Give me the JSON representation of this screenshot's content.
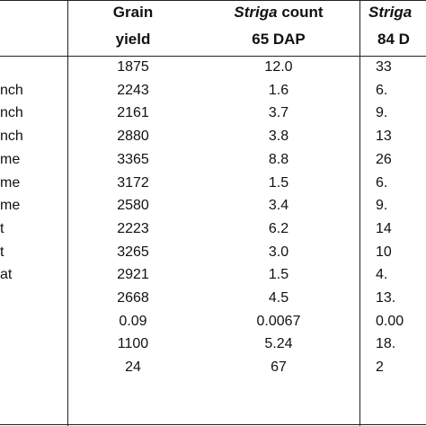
{
  "table": {
    "header": {
      "grain": [
        "Grain",
        "yield"
      ],
      "striga65": {
        "line1": [
          "Striga",
          " count"
        ],
        "line2": "65 DAP"
      },
      "striga84": [
        "Striga",
        "84 D"
      ]
    },
    "rows": [
      [
        null,
        "1875",
        "12.0",
        "33"
      ],
      [
        "nch",
        "2243",
        "1.6",
        "6."
      ],
      [
        "nch",
        "2161",
        "3.7",
        "9."
      ],
      [
        "nch",
        "2880",
        "3.8",
        "13"
      ],
      [
        "me",
        "3365",
        "8.8",
        "26"
      ],
      [
        "me",
        "3172",
        "1.5",
        "6."
      ],
      [
        "me",
        "2580",
        "3.4",
        "9."
      ],
      [
        "t",
        "2223",
        "6.2",
        "14"
      ],
      [
        "t",
        "3265",
        "3.0",
        "10"
      ],
      [
        "at",
        "2921",
        "1.5",
        "4."
      ],
      [
        null,
        "2668",
        "4.5",
        "13."
      ],
      [
        null,
        "0.09",
        "0.0067",
        "0.00"
      ],
      [
        null,
        "1100",
        "5.24",
        "18."
      ],
      [
        null,
        "24",
        "67",
        "2"
      ]
    ]
  }
}
